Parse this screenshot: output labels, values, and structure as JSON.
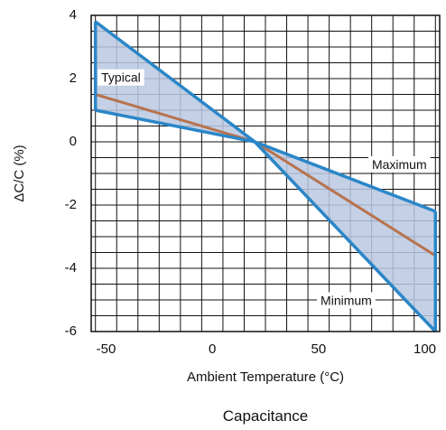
{
  "chart_data": {
    "type": "area",
    "x_ticks": [
      -50,
      0,
      50,
      100
    ],
    "y_ticks": [
      4,
      2,
      0,
      -2,
      -4,
      -6
    ],
    "xlim": [
      -57,
      107
    ],
    "ylim": [
      -6,
      4
    ],
    "xlabel": "Ambient Temperature (°C)",
    "ylabel": "ΔC/C (%)",
    "caption": "Capacitance",
    "grid": true,
    "series": [
      {
        "name": "Maximum",
        "x": [
          -55,
          20,
          105
        ],
        "y": [
          3.8,
          0,
          -2.2
        ]
      },
      {
        "name": "Minimum",
        "x": [
          -55,
          20,
          105
        ],
        "y": [
          1.0,
          0,
          -6.0
        ]
      },
      {
        "name": "Typical",
        "x": [
          -55,
          20,
          105
        ],
        "y": [
          1.5,
          0,
          -3.6
        ]
      }
    ],
    "annotations": [
      {
        "text": "Typical",
        "x": -43,
        "y": 2.0
      },
      {
        "text": "Maximum",
        "x": 88,
        "y": -0.75
      },
      {
        "text": "Minimum",
        "x": 63,
        "y": -5.05
      }
    ],
    "colors": {
      "envelope_stroke": "#2a86c8",
      "envelope_fill": "#b9c8e0",
      "typical": "#b8734f",
      "grid": "#111111"
    }
  }
}
